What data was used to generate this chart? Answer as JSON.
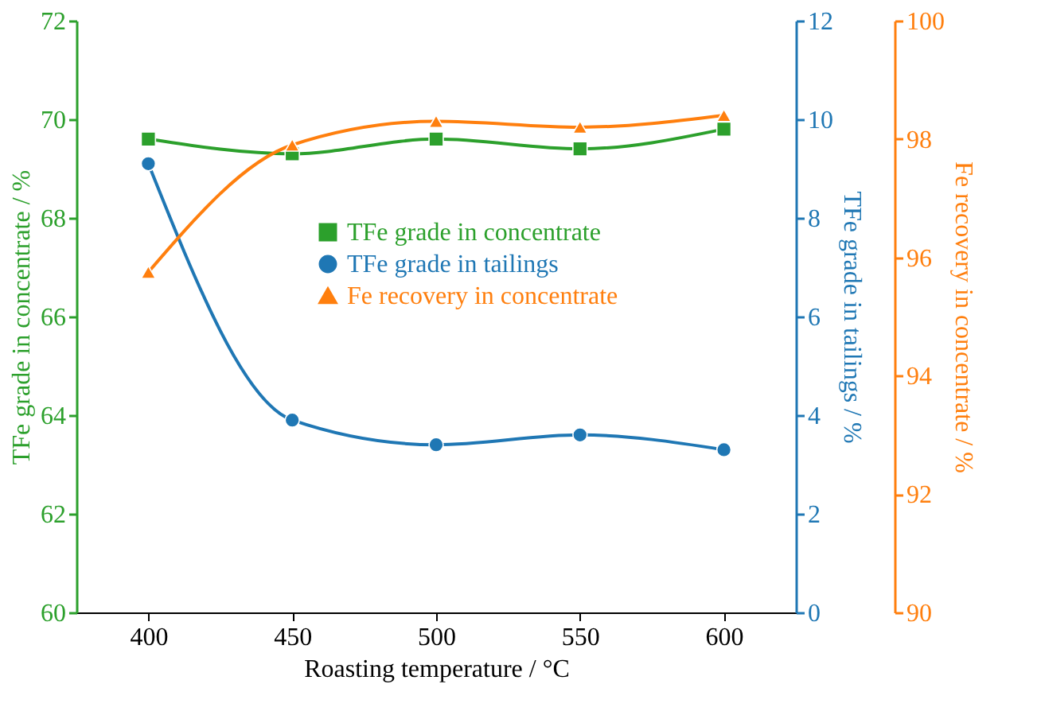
{
  "chart_data": {
    "type": "line",
    "xlabel": "Roasting temperature / °C",
    "ylabel": "TFe grade in concentrate / %",
    "y2label": "TFe grade in tailings / %",
    "y3label": "Fe recovery in concentrate / %",
    "x": [
      400,
      450,
      500,
      550,
      600
    ],
    "xlim": [
      375,
      625
    ],
    "xticks": [
      400,
      450,
      500,
      550,
      600
    ],
    "ylim": [
      60,
      72
    ],
    "yticks": [
      60,
      62,
      64,
      66,
      68,
      70,
      72
    ],
    "y2lim": [
      0,
      12
    ],
    "y2ticks": [
      0,
      2,
      4,
      6,
      8,
      10,
      12
    ],
    "y3lim": [
      90,
      100
    ],
    "y3ticks": [
      90,
      92,
      94,
      96,
      98,
      100
    ],
    "grid": false,
    "legend": "right",
    "line_style": "solid",
    "series": [
      {
        "name": "TFe grade in concentrate",
        "color": "#2ca02c",
        "axis": "y",
        "marker": "square",
        "values": [
          69.6,
          69.3,
          69.6,
          69.4,
          69.8
        ]
      },
      {
        "name": "TFe grade in tailings",
        "color": "#1f77b4",
        "axis": "y2",
        "marker": "circle",
        "values": [
          9.1,
          3.9,
          3.4,
          3.6,
          3.3
        ]
      },
      {
        "name": "Fe recovery in concentrate",
        "color": "#ff7f0e",
        "axis": "y3",
        "marker": "triangle",
        "values": [
          95.75,
          97.9,
          98.3,
          98.2,
          98.4
        ]
      }
    ]
  }
}
